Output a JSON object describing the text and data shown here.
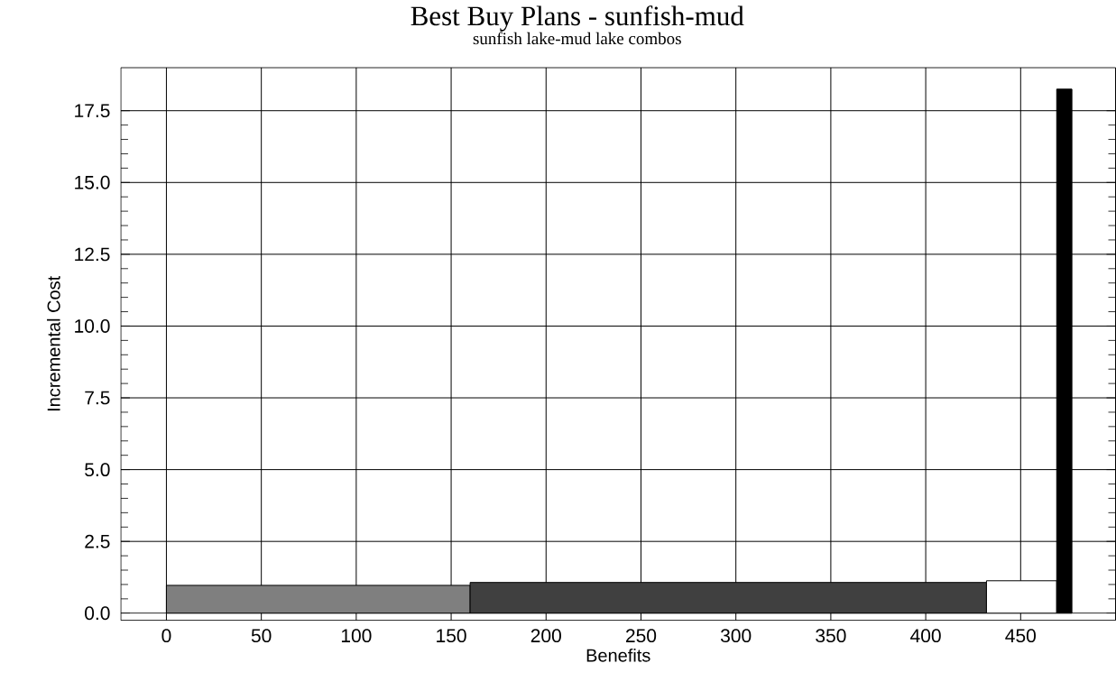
{
  "chart_data": {
    "type": "histogram",
    "title": "Best Buy Plans - sunfish-mud",
    "subtitle": "sunfish lake-mud lake combos",
    "xlabel": "Benefits",
    "ylabel": "Incremental Cost",
    "bins": [
      0,
      160,
      432,
      469,
      477
    ],
    "values": [
      0.97,
      1.07,
      1.13,
      18.25
    ],
    "colors": [
      "#7f7f7f",
      "#404040",
      "#ffffff",
      "#000000"
    ],
    "xlim": [
      -24,
      500
    ],
    "xticks": [
      0,
      50,
      100,
      150,
      200,
      250,
      300,
      350,
      400,
      450
    ],
    "ylim": [
      -0.25,
      19
    ],
    "yticks": [
      {
        "value": 0,
        "label": "0.0"
      },
      {
        "value": 2.5,
        "label": "2.5"
      },
      {
        "value": 5,
        "label": "5.0"
      },
      {
        "value": 7.5,
        "label": "7.5"
      },
      {
        "value": 10,
        "label": "10.0"
      },
      {
        "value": 12.5,
        "label": "12.5"
      },
      {
        "value": 15,
        "label": "15.0"
      },
      {
        "value": 17.5,
        "label": "17.5"
      }
    ],
    "grid": true
  }
}
